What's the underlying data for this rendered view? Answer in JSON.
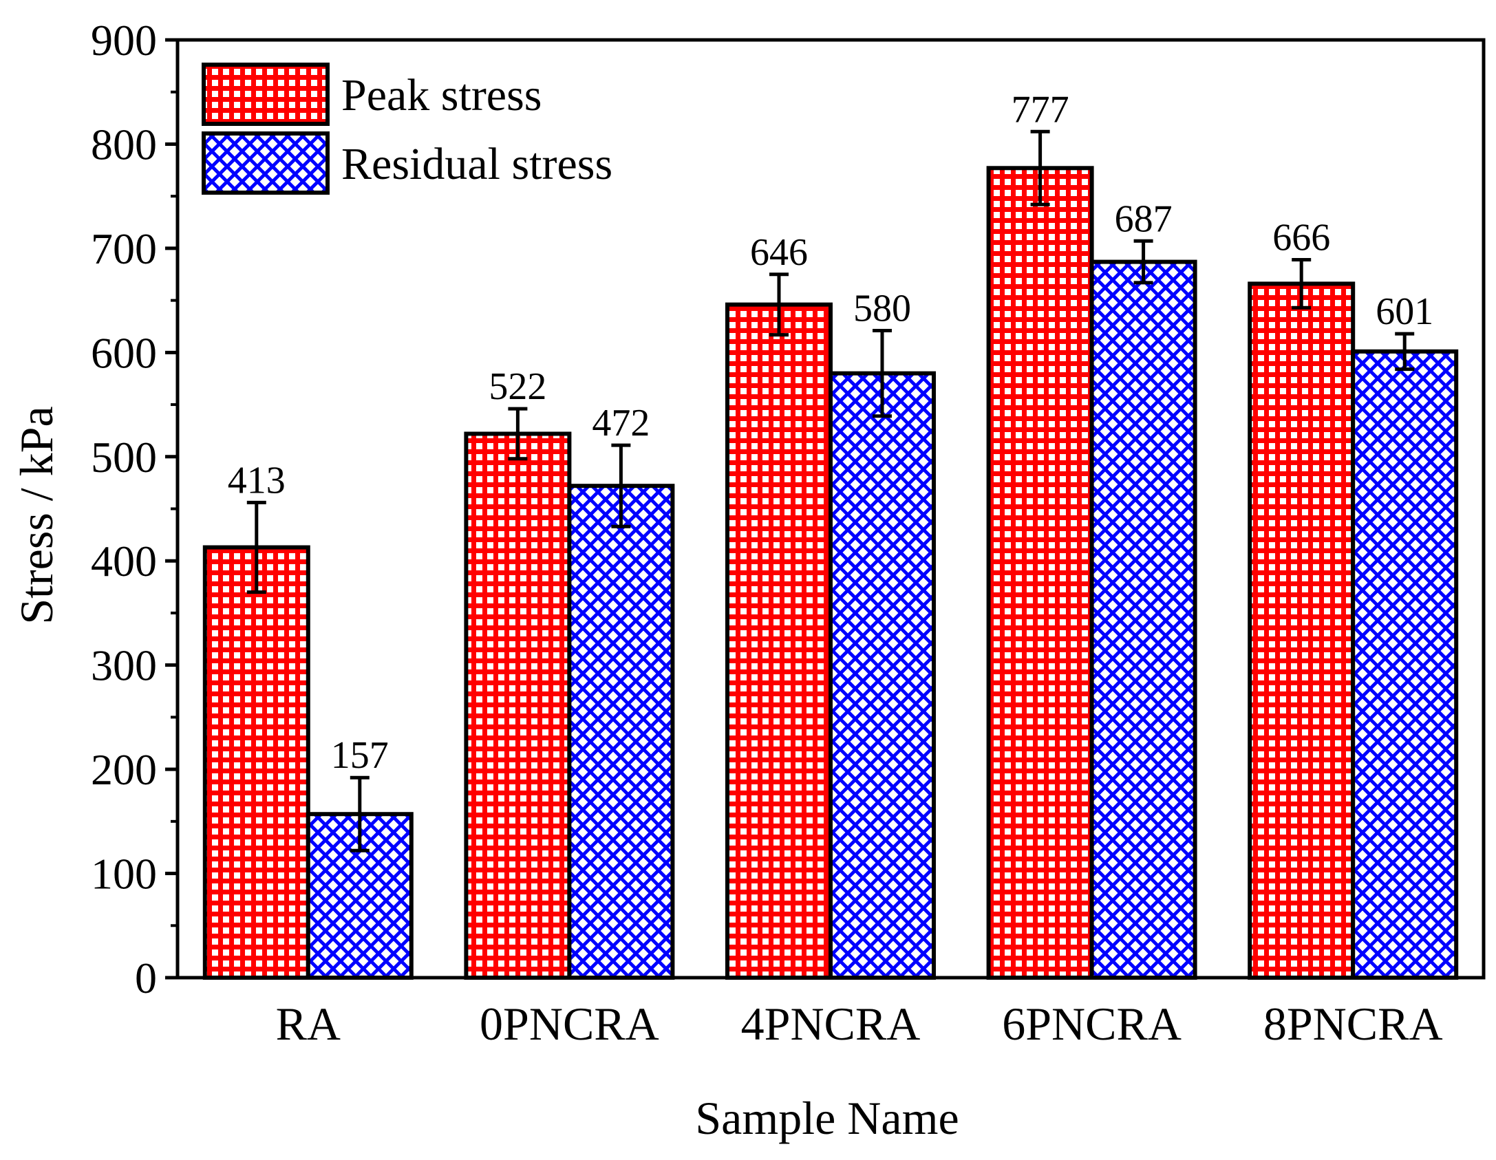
{
  "chart_data": {
    "type": "bar",
    "title": "",
    "xlabel": "Sample Name",
    "ylabel": "Stress / kPa",
    "categories": [
      "RA",
      "0PNCRA",
      "4PNCRA",
      "6PNCRA",
      "8PNCRA"
    ],
    "ylim": [
      0,
      900
    ],
    "yticks": [
      0,
      100,
      200,
      300,
      400,
      500,
      600,
      700,
      800,
      900
    ],
    "grid": false,
    "legend_position": "top-left",
    "series": [
      {
        "name": "Peak stress",
        "color": "#ff0000",
        "pattern": "grid",
        "values": [
          413,
          522,
          646,
          777,
          666
        ],
        "errors": [
          43,
          24,
          29,
          35,
          23
        ],
        "labels": [
          "413",
          "522",
          "646",
          "777",
          "666"
        ]
      },
      {
        "name": "Residual stress",
        "color": "#0000ff",
        "pattern": "crosshatch",
        "values": [
          157,
          472,
          580,
          687,
          601
        ],
        "errors": [
          35,
          39,
          41,
          20,
          17
        ],
        "labels": [
          "157",
          "472",
          "580",
          "687",
          "601"
        ]
      }
    ]
  }
}
